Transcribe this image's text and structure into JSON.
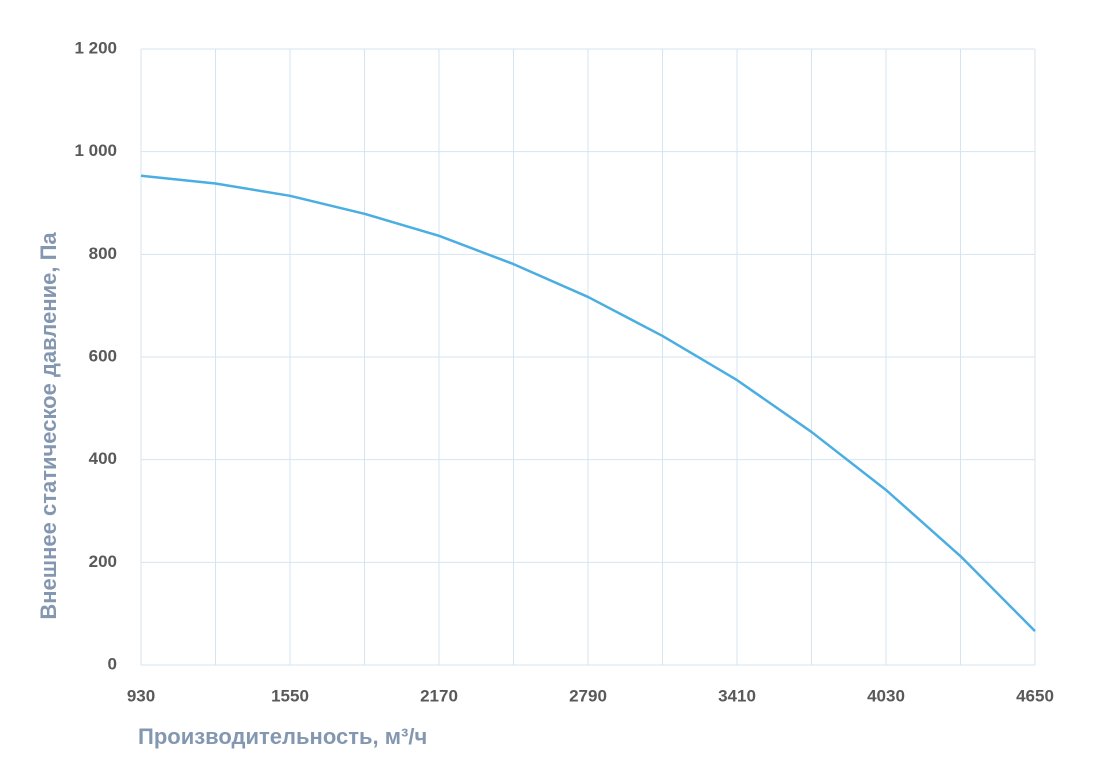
{
  "chart_data": {
    "type": "line",
    "x_label": "Производительность, м³/ч",
    "y_label": "Внешнее статическое давление, Па",
    "x": [
      930,
      1240,
      1550,
      1860,
      2170,
      2480,
      2790,
      3100,
      3410,
      3720,
      4030,
      4340,
      4650
    ],
    "series": [
      {
        "color": "#4aaee3",
        "values": [
          953,
          938,
          914,
          879,
          836,
          781,
          717,
          641,
          555,
          454,
          341,
          212,
          66
        ]
      }
    ],
    "xlim": [
      930,
      4650
    ],
    "xticks": [
      930,
      1550,
      2170,
      2790,
      3410,
      4030,
      4650
    ],
    "x_minor_grid": [
      1240,
      1860,
      2480,
      3100,
      3720,
      4340
    ],
    "ylim": [
      0,
      1200
    ],
    "yticks": [
      0,
      200,
      400,
      600,
      800,
      {
        "value": 1000,
        "label": "1 000"
      },
      {
        "value": 1200,
        "label": "1 200"
      }
    ],
    "grid": true
  }
}
